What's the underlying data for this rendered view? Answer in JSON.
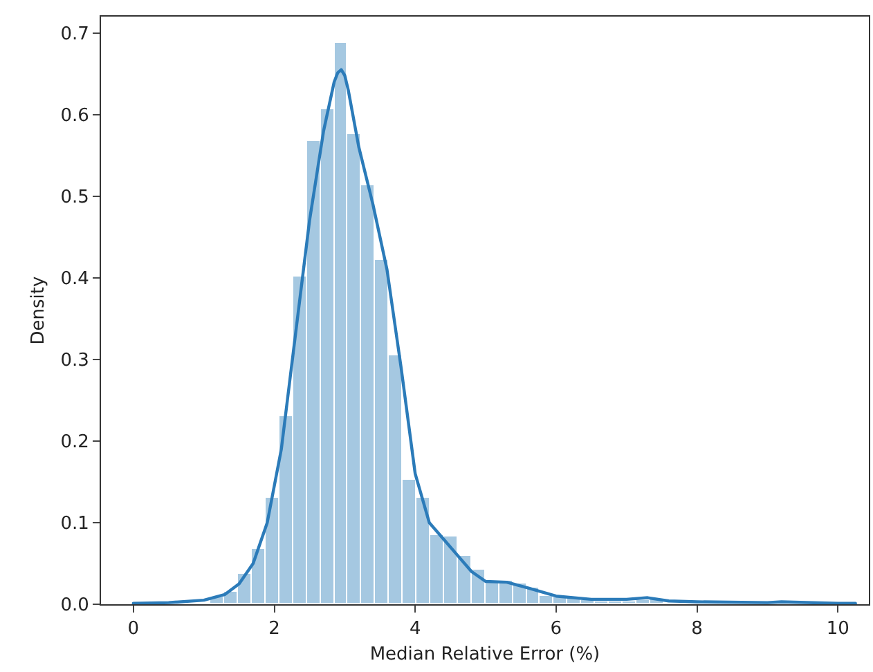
{
  "chart_data": {
    "type": "histogram",
    "xlabel": "Median Relative Error (%)",
    "ylabel": "Density",
    "bins": [
      0.12,
      0.315,
      0.51,
      0.705,
      0.9,
      1.095,
      1.29,
      1.485,
      1.68,
      1.875,
      2.07,
      2.265,
      2.46,
      2.655,
      2.85,
      3.045,
      3.24,
      3.435,
      3.63,
      3.825,
      4.02,
      4.215,
      4.41,
      4.605,
      4.8,
      4.995,
      5.19,
      5.385,
      5.58,
      5.775,
      5.97,
      6.165,
      6.36,
      6.555,
      6.75,
      6.945,
      7.14,
      7.335,
      7.53,
      7.725,
      7.92,
      8.115,
      8.31,
      8.505,
      8.7,
      8.895,
      9.09,
      9.285,
      9.48,
      9.675,
      9.87,
      10.065,
      10.26
    ],
    "values": [
      0.001,
      0.001,
      0.002,
      null,
      null,
      0.008,
      0.015,
      0.037,
      0.067,
      0.13,
      0.231,
      0.401,
      0.568,
      0.606,
      0.687,
      0.576,
      0.514,
      0.422,
      0.305,
      0.152,
      0.131,
      0.085,
      0.083,
      0.06,
      0.042,
      0.028,
      0.028,
      0.025,
      0.02,
      0.011,
      0.008,
      0.006,
      0.005,
      0.004,
      0.004,
      0.004,
      0.005,
      0.006,
      null,
      null,
      0.002,
      0.002,
      0.002,
      0.001,
      0.001,
      0.001,
      0.001,
      0.001,
      0.001,
      0.001,
      0.001,
      0.001
    ],
    "color": "#a5c8e1",
    "series": [
      {
        "type": "line",
        "color": "#2b7bb9",
        "x": [
          0,
          0.5,
          1.0,
          1.3,
          1.5,
          1.7,
          1.9,
          2.1,
          2.3,
          2.5,
          2.7,
          2.85,
          2.9,
          2.95,
          3.0,
          3.05,
          3.2,
          3.4,
          3.6,
          3.8,
          4.0,
          4.2,
          4.4,
          4.6,
          4.8,
          5.0,
          5.3,
          5.6,
          6.0,
          6.5,
          7.0,
          7.3,
          7.6,
          8.0,
          9.0,
          9.2,
          10.0,
          10.25
        ],
        "values": [
          0.001,
          0.002,
          0.005,
          0.012,
          0.025,
          0.05,
          0.1,
          0.19,
          0.33,
          0.47,
          0.58,
          0.64,
          0.651,
          0.655,
          0.648,
          0.63,
          0.56,
          0.49,
          0.41,
          0.29,
          0.16,
          0.1,
          0.08,
          0.06,
          0.04,
          0.028,
          0.027,
          0.02,
          0.01,
          0.006,
          0.006,
          0.008,
          0.004,
          0.003,
          0.002,
          0.003,
          0.001,
          0.001
        ]
      }
    ],
    "xlim": [
      -0.46,
      10.44
    ],
    "xticks": [
      0,
      2,
      4,
      6,
      8,
      10
    ],
    "ylim": [
      0,
      0.72
    ],
    "yticks": [
      {
        "value": 0,
        "label": "0.0"
      },
      {
        "value": 0.1,
        "label": "0.1"
      },
      {
        "value": 0.2,
        "label": "0.2"
      },
      {
        "value": 0.3,
        "label": "0.3"
      },
      {
        "value": 0.4,
        "label": "0.4"
      },
      {
        "value": 0.5,
        "label": "0.5"
      },
      {
        "value": 0.6,
        "label": "0.6"
      },
      {
        "value": 0.7,
        "label": "0.7"
      }
    ]
  }
}
